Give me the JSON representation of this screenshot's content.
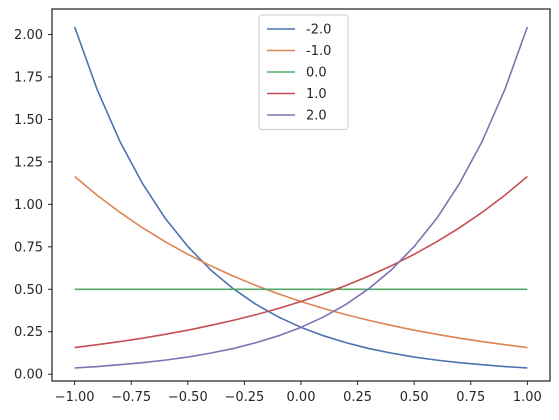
{
  "chart_data": {
    "type": "line",
    "title": "",
    "xlabel": "",
    "ylabel": "",
    "xlim": [
      -1.1,
      1.1
    ],
    "ylim": [
      -0.04,
      2.15
    ],
    "grid": false,
    "legend_position": "top-center",
    "xticks": [
      {
        "value": -1.0,
        "label": "−1.00"
      },
      {
        "value": -0.75,
        "label": "−0.75"
      },
      {
        "value": -0.5,
        "label": "−0.50"
      },
      {
        "value": -0.25,
        "label": "−0.25"
      },
      {
        "value": 0.0,
        "label": "0.00"
      },
      {
        "value": 0.25,
        "label": "0.25"
      },
      {
        "value": 0.5,
        "label": "0.50"
      },
      {
        "value": 0.75,
        "label": "0.75"
      },
      {
        "value": 1.0,
        "label": "1.00"
      }
    ],
    "yticks": [
      {
        "value": 0.0,
        "label": "0.00"
      },
      {
        "value": 0.25,
        "label": "0.25"
      },
      {
        "value": 0.5,
        "label": "0.50"
      },
      {
        "value": 0.75,
        "label": "0.75"
      },
      {
        "value": 1.0,
        "label": "1.00"
      },
      {
        "value": 1.25,
        "label": "1.25"
      },
      {
        "value": 1.5,
        "label": "1.50"
      },
      {
        "value": 1.75,
        "label": "1.75"
      },
      {
        "value": 2.0,
        "label": "2.00"
      }
    ],
    "x": [
      -1.0,
      -0.9,
      -0.8,
      -0.7,
      -0.6,
      -0.5,
      -0.4,
      -0.3,
      -0.2,
      -0.1,
      0.0,
      0.1,
      0.2,
      0.3,
      0.4,
      0.5,
      0.6,
      0.7,
      0.8,
      0.9,
      1.0
    ],
    "series": [
      {
        "name": "-2.0",
        "color": "#4c72b0",
        "values": [
          2.045,
          1.674,
          1.37,
          1.122,
          0.918,
          0.752,
          0.615,
          0.504,
          0.412,
          0.337,
          0.276,
          0.226,
          0.185,
          0.151,
          0.124,
          0.101,
          0.083,
          0.068,
          0.056,
          0.045,
          0.037
        ]
      },
      {
        "name": "-1.0",
        "color": "#dd8452",
        "values": [
          1.164,
          1.053,
          0.953,
          0.862,
          0.78,
          0.706,
          0.639,
          0.578,
          0.523,
          0.473,
          0.428,
          0.387,
          0.35,
          0.317,
          0.287,
          0.259,
          0.235,
          0.212,
          0.192,
          0.174,
          0.157
        ]
      },
      {
        "name": "0.0",
        "color": "#55a868",
        "values": [
          0.5,
          0.5,
          0.5,
          0.5,
          0.5,
          0.5,
          0.5,
          0.5,
          0.5,
          0.5,
          0.5,
          0.5,
          0.5,
          0.5,
          0.5,
          0.5,
          0.5,
          0.5,
          0.5,
          0.5,
          0.5
        ]
      },
      {
        "name": "1.0",
        "color": "#c44e52",
        "values": [
          0.157,
          0.174,
          0.192,
          0.212,
          0.235,
          0.259,
          0.287,
          0.317,
          0.35,
          0.387,
          0.428,
          0.473,
          0.523,
          0.578,
          0.639,
          0.706,
          0.78,
          0.862,
          0.953,
          1.053,
          1.164
        ]
      },
      {
        "name": "2.0",
        "color": "#8172b3",
        "values": [
          0.037,
          0.045,
          0.056,
          0.068,
          0.083,
          0.101,
          0.124,
          0.151,
          0.185,
          0.226,
          0.276,
          0.337,
          0.412,
          0.504,
          0.615,
          0.752,
          0.918,
          1.122,
          1.37,
          1.674,
          2.045
        ]
      }
    ]
  }
}
